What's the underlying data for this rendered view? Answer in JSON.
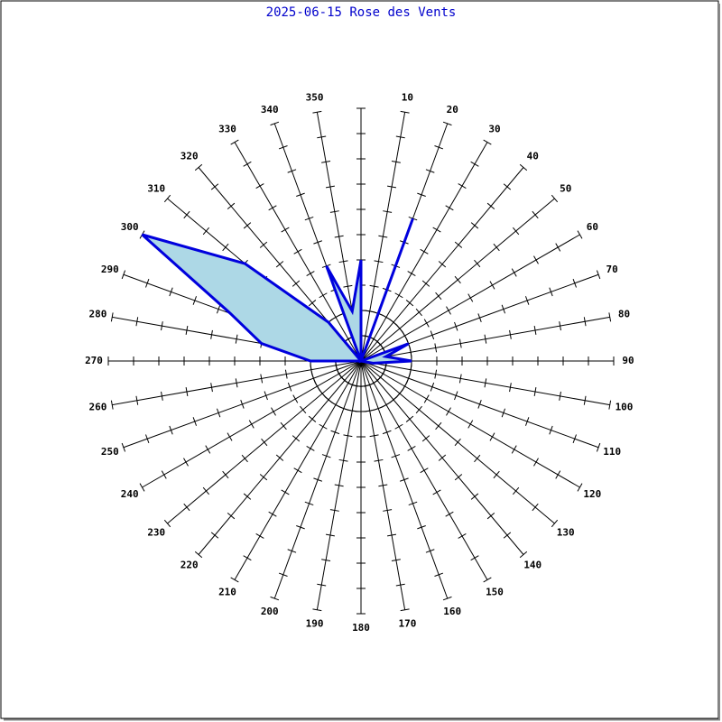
{
  "chart_data": {
    "type": "radar",
    "title": "2025-06-15 Rose des Vents",
    "categories": [
      null,
      "10",
      "20",
      "30",
      "40",
      "50",
      "60",
      "70",
      "80",
      "90",
      "100",
      "110",
      "120",
      "130",
      "140",
      "150",
      "160",
      "170",
      "180",
      "190",
      "200",
      "210",
      "220",
      "230",
      "240",
      "250",
      "260",
      "270",
      "280",
      "290",
      "300",
      "310",
      "320",
      "330",
      "340",
      "350"
    ],
    "values": [
      4,
      0,
      6,
      0,
      0,
      0,
      0,
      2,
      1,
      2,
      0.5,
      0,
      0,
      0,
      0,
      0,
      0,
      0,
      0,
      0,
      0,
      0,
      0,
      0,
      0,
      0,
      0,
      2,
      4,
      5.5,
      10,
      6,
      2,
      0,
      4,
      2
    ],
    "color": "#0000dd",
    "fill": "#add8e6",
    "title_color": "#0000cc",
    "rlim": [
      0,
      10
    ],
    "rticks": [
      1,
      2,
      3,
      4,
      5,
      6,
      7,
      8,
      9,
      10
    ],
    "rings": [
      1,
      2
    ]
  }
}
